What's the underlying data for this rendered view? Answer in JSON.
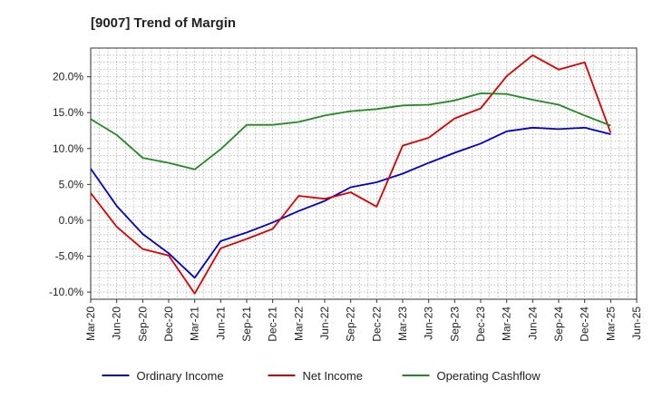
{
  "chart_data": {
    "type": "line",
    "title": "[9007]  Trend of Margin",
    "xlabel": "",
    "ylabel": "",
    "y_unit": "%",
    "ylim": [
      -11,
      24
    ],
    "y_ticks": [
      -10,
      -5,
      0,
      5,
      10,
      15,
      20
    ],
    "y_tick_labels": [
      "-10.0%",
      "-5.0%",
      "0.0%",
      "5.0%",
      "10.0%",
      "15.0%",
      "20.0%"
    ],
    "x_tick_labels": [
      "Mar-20",
      "Jun-20",
      "Sep-20",
      "Dec-20",
      "Mar-21",
      "Jun-21",
      "Sep-21",
      "Dec-21",
      "Mar-22",
      "Jun-22",
      "Sep-22",
      "Dec-22",
      "Mar-23",
      "Jun-23",
      "Sep-23",
      "Dec-23",
      "Mar-24",
      "Jun-24",
      "Sep-24",
      "Dec-24",
      "Mar-25",
      "Jun-25"
    ],
    "categories": [
      "Mar-20",
      "Jun-20",
      "Sep-20",
      "Dec-20",
      "Mar-21",
      "Jun-21",
      "Sep-21",
      "Dec-21",
      "Mar-22",
      "Jun-22",
      "Sep-22",
      "Dec-22",
      "Mar-23",
      "Jun-23",
      "Sep-23",
      "Dec-23",
      "Mar-24",
      "Jun-24",
      "Sep-24",
      "Dec-24",
      "Mar-25"
    ],
    "grid": true,
    "legend_position": "bottom",
    "series": [
      {
        "name": "Ordinary Income",
        "color": "#0000cc",
        "values": [
          7.2,
          2.0,
          -1.9,
          -4.6,
          -8.0,
          -2.9,
          -1.7,
          -0.3,
          1.3,
          2.7,
          4.6,
          5.3,
          6.5,
          8.0,
          9.4,
          10.7,
          12.4,
          12.9,
          12.7,
          12.9,
          12.0
        ]
      },
      {
        "name": "Net Income",
        "color": "#dd0000",
        "values": [
          3.8,
          -0.9,
          -4.0,
          -4.9,
          -10.2,
          -3.9,
          -2.6,
          -1.2,
          3.4,
          3.0,
          3.9,
          1.9,
          10.4,
          11.5,
          14.2,
          15.6,
          20.1,
          23.0,
          21.0,
          22.0,
          12.2
        ]
      },
      {
        "name": "Operating Cashflow",
        "color": "#228822",
        "values": [
          14.1,
          11.9,
          8.7,
          8.0,
          7.1,
          9.9,
          13.3,
          13.3,
          13.7,
          14.6,
          15.2,
          15.5,
          16.0,
          16.1,
          16.7,
          17.7,
          17.6,
          16.8,
          16.1,
          14.6,
          13.2
        ]
      }
    ]
  }
}
